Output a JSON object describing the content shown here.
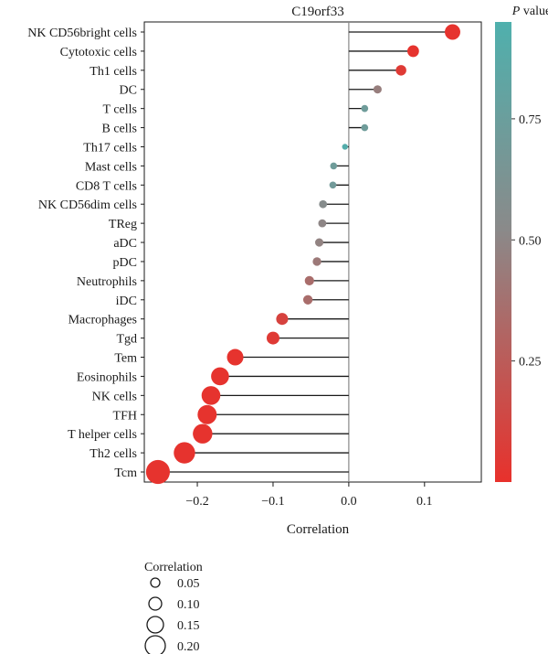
{
  "chart_data": {
    "type": "lollipop",
    "title": "C19orf33",
    "xlabel": "Correlation",
    "ylabel": "",
    "xlim": [
      -0.27,
      0.175
    ],
    "xticks": [
      -0.2,
      -0.1,
      0.0,
      0.1
    ],
    "xtick_labels": [
      "−0.2",
      "−0.1",
      "0.0",
      "0.1"
    ],
    "categories": [
      "NK CD56bright cells",
      "Cytotoxic cells",
      "Th1 cells",
      "DC",
      "T cells",
      "B cells",
      "Th17 cells",
      "Mast cells",
      "CD8 T cells",
      "NK CD56dim cells",
      "TReg",
      "aDC",
      "pDC",
      "Neutrophils",
      "iDC",
      "Macrophages",
      "Tgd",
      "Tem",
      "Eosinophils",
      "NK cells",
      "TFH",
      "T helper cells",
      "Th2 cells",
      "Tcm"
    ],
    "correlation": [
      0.137,
      0.085,
      0.069,
      0.038,
      0.021,
      0.021,
      -0.005,
      -0.02,
      -0.021,
      -0.034,
      -0.035,
      -0.039,
      -0.042,
      -0.052,
      -0.054,
      -0.088,
      -0.1,
      -0.15,
      -0.17,
      -0.182,
      -0.187,
      -0.193,
      -0.217,
      -0.252
    ],
    "p_value": [
      0.01,
      0.01,
      0.05,
      0.45,
      0.72,
      0.72,
      0.92,
      0.72,
      0.7,
      0.55,
      0.5,
      0.48,
      0.42,
      0.35,
      0.35,
      0.1,
      0.05,
      0.01,
      0.01,
      0.01,
      0.01,
      0.01,
      0.01,
      0.01
    ],
    "colorbar": {
      "title_italic": "P",
      "title_rest": " value",
      "ticks": [
        0.25,
        0.5,
        0.75
      ],
      "tick_labels": [
        "0.25",
        "0.50",
        "0.75"
      ],
      "range": [
        0.0,
        0.95
      ],
      "low_color": "#e8312c",
      "mid_color": "#8a8a8a",
      "high_color": "#4fb0ad"
    },
    "size_legend": {
      "title": "Correlation",
      "values": [
        0.05,
        0.1,
        0.15,
        0.2
      ],
      "labels": [
        "0.05",
        "0.10",
        "0.15",
        "0.20"
      ]
    },
    "colors": {
      "stem": "#1a1a1a",
      "zero_line": "#888888",
      "frame": "#1a1a1a"
    }
  }
}
